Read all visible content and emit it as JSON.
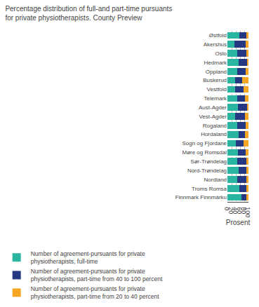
{
  "chart_data": {
    "type": "bar",
    "orientation": "horizontal",
    "stacked": true,
    "title": "Percentage distribution of full-and part-time pursuants\nfor private physiotherapists. County Preview",
    "categories": [
      "Østfold",
      "Akershus",
      "Oslo",
      "Hedmark",
      "Oppland",
      "Buskerud",
      "Vestfold",
      "Telemark",
      "Aust-Agder",
      "Vest-Agder",
      "Rogaland",
      "Hordaland",
      "Sogn og Fjordane",
      "Møre og Romsdal",
      "Sør-Trøndelag",
      "Nord-Trøndelag",
      "Nordland",
      "Troms Romsa",
      "Finnmark Finnmárku"
    ],
    "series": [
      {
        "name": "Number of agreement-pursuants for private\nphysiotherapists, full-time",
        "color": "#2ab5a0",
        "values": [
          58,
          32,
          47,
          53,
          47,
          38,
          38,
          47,
          50,
          35,
          47,
          52,
          41,
          50,
          46,
          52,
          47,
          58,
          65
        ]
      },
      {
        "name": "Number of agreement-pursuants for private\nphysiotherapists, part-time from 40 to 100 percent",
        "color": "#253882",
        "values": [
          33,
          55,
          42,
          40,
          38,
          33,
          37,
          35,
          43,
          47,
          38,
          32,
          37,
          38,
          43,
          38,
          43,
          33,
          25
        ]
      },
      {
        "name": "Number of agreement-pursuants for private\nphysiotherapists, part-time from 20 to 40 percent",
        "color": "#f5a623",
        "values": [
          9,
          13,
          11,
          7,
          15,
          29,
          25,
          18,
          7,
          18,
          15,
          16,
          22,
          12,
          11,
          10,
          10,
          9,
          10
        ]
      }
    ],
    "xlabel": "Prosent",
    "xlim": [
      0,
      100
    ],
    "xticks": [
      0,
      20,
      40,
      60,
      80,
      100
    ],
    "grid": true,
    "legend": "bottom left"
  }
}
